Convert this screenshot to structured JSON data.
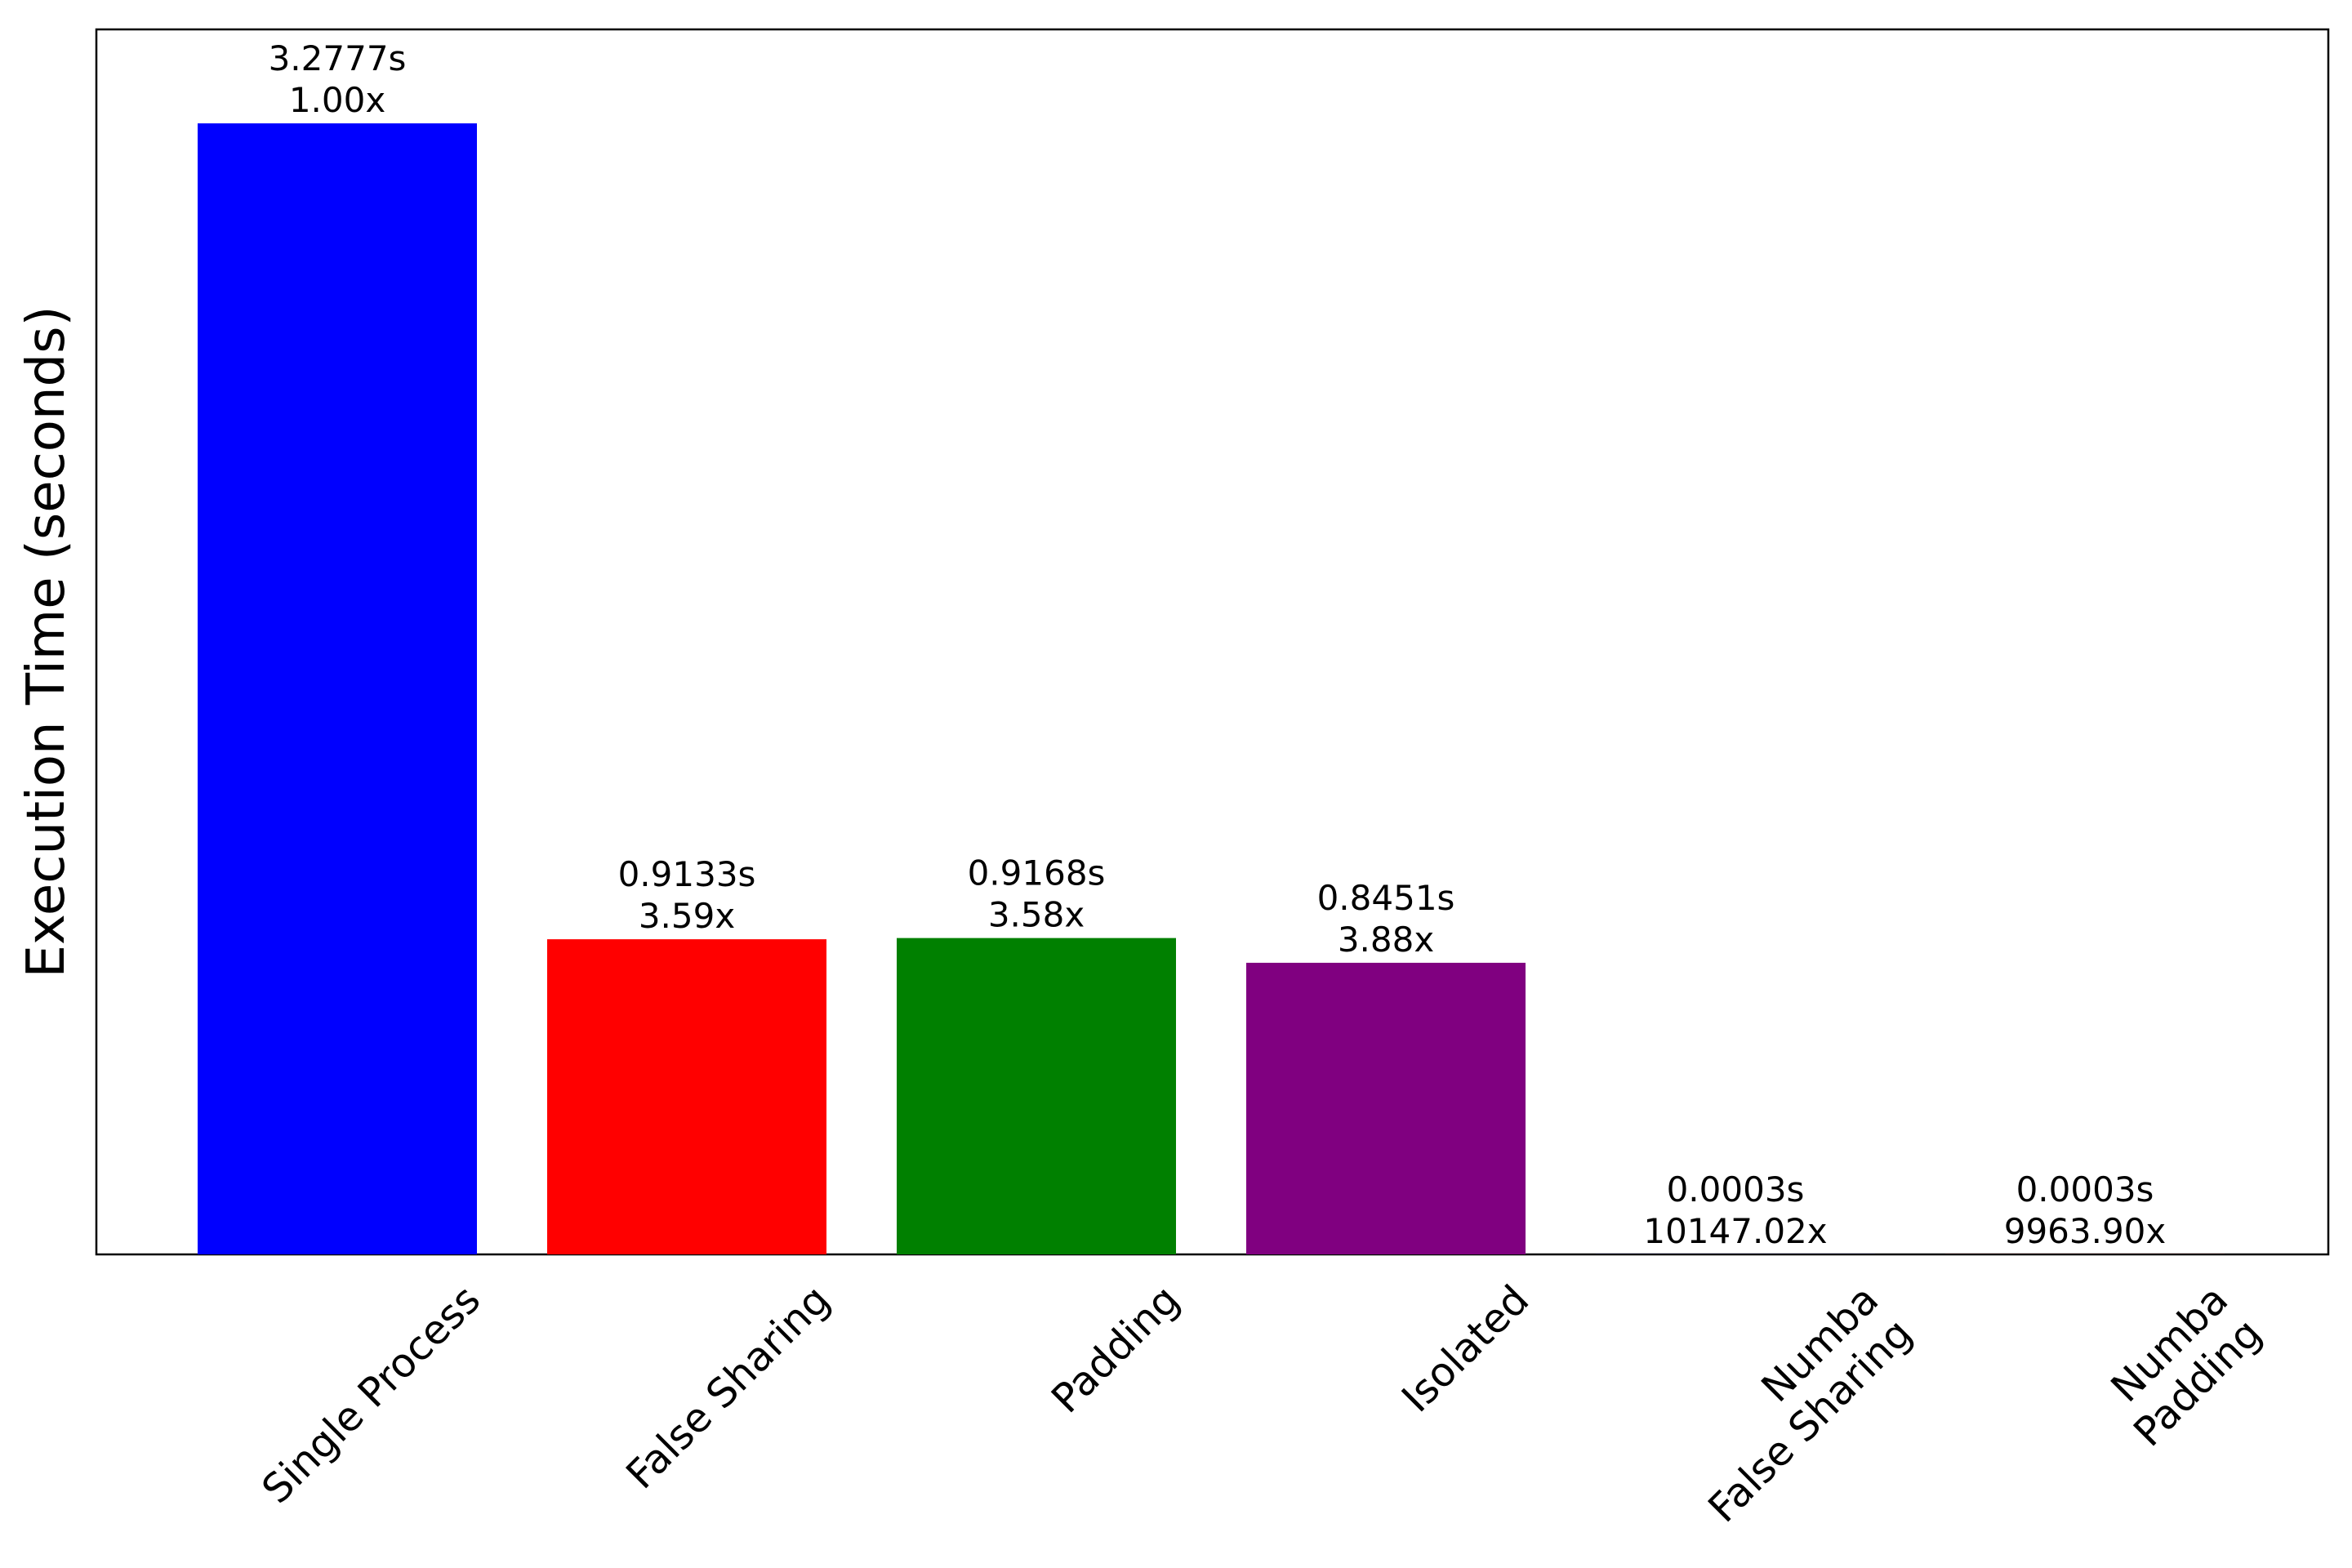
{
  "chart_data": {
    "type": "bar",
    "title": "",
    "xlabel": "",
    "ylabel": "Execution Time (seconds)",
    "ylim": [
      0,
      3.55
    ],
    "grid": false,
    "y_ticks_visible": false,
    "categories": [
      [
        "Single Process"
      ],
      [
        "False Sharing"
      ],
      [
        "Padding"
      ],
      [
        "Isolated"
      ],
      [
        "Numba",
        "False Sharing"
      ],
      [
        "Numba",
        "Padding"
      ]
    ],
    "values": [
      3.2777,
      0.9133,
      0.9168,
      0.8451,
      0.0003,
      0.0003
    ],
    "colors": [
      "#0000ff",
      "#ff0000",
      "#008000",
      "#800080",
      "#0000ff",
      "#ff0000"
    ],
    "data_labels": [
      [
        "3.2777s",
        "1.00x"
      ],
      [
        "0.9133s",
        "3.59x"
      ],
      [
        "0.9168s",
        "3.58x"
      ],
      [
        "0.8451s",
        "3.88x"
      ],
      [
        "0.0003s",
        "10147.02x"
      ],
      [
        "0.0003s",
        "9963.90x"
      ]
    ],
    "tick_rotation_deg": 45
  }
}
